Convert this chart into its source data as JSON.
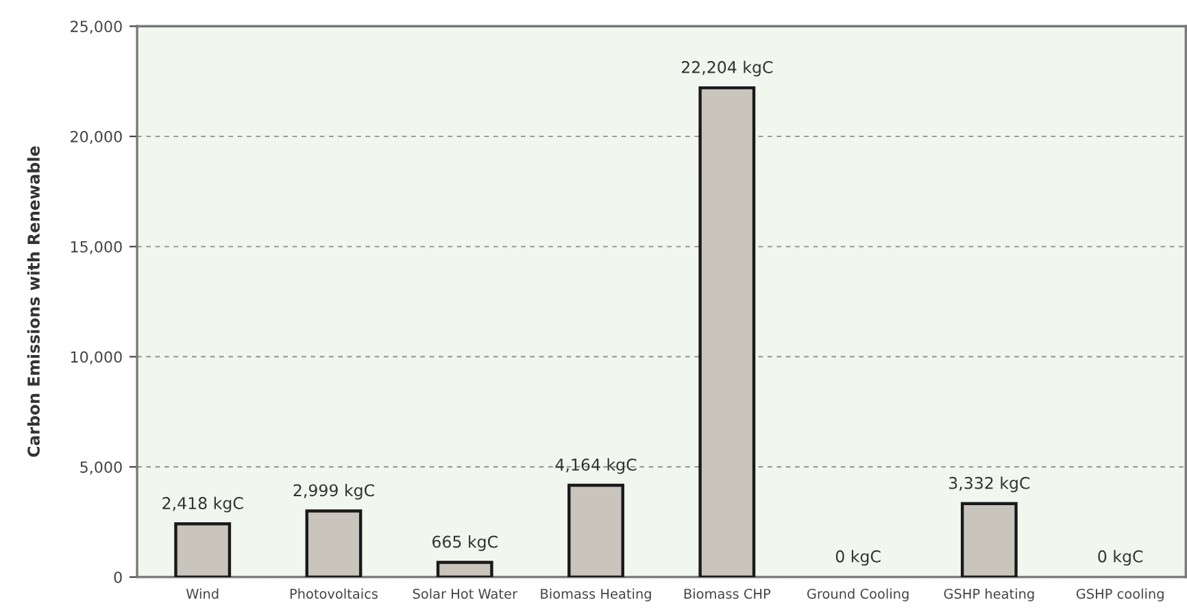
{
  "chart_data": {
    "type": "bar",
    "ylabel": "Carbon Emissions with Renewable",
    "categories": [
      "Wind",
      "Photovoltaics",
      "Solar Hot Water",
      "Biomass Heating",
      "Biomass CHP",
      "Ground Cooling",
      "GSHP heating",
      "GSHP cooling"
    ],
    "values": [
      2418,
      2999,
      665,
      4164,
      22204,
      0,
      3332,
      0
    ],
    "value_labels": [
      "2,418 kgC",
      "2,999 kgC",
      "665 kgC",
      "4,164 kgC",
      "22,204 kgC",
      "0 kgC",
      "3,332 kgC",
      "0 kgC"
    ],
    "color": "#c9c5bd",
    "ylim": [
      0,
      25000
    ],
    "yticks": [
      0,
      {
        "value": 5000,
        "label": "5,000"
      },
      {
        "value": 10000,
        "label": "10,000"
      },
      {
        "value": 15000,
        "label": "15,000"
      },
      {
        "value": 20000,
        "label": "20,000"
      },
      {
        "value": 25000,
        "label": "25,000"
      }
    ],
    "grid": "y"
  }
}
